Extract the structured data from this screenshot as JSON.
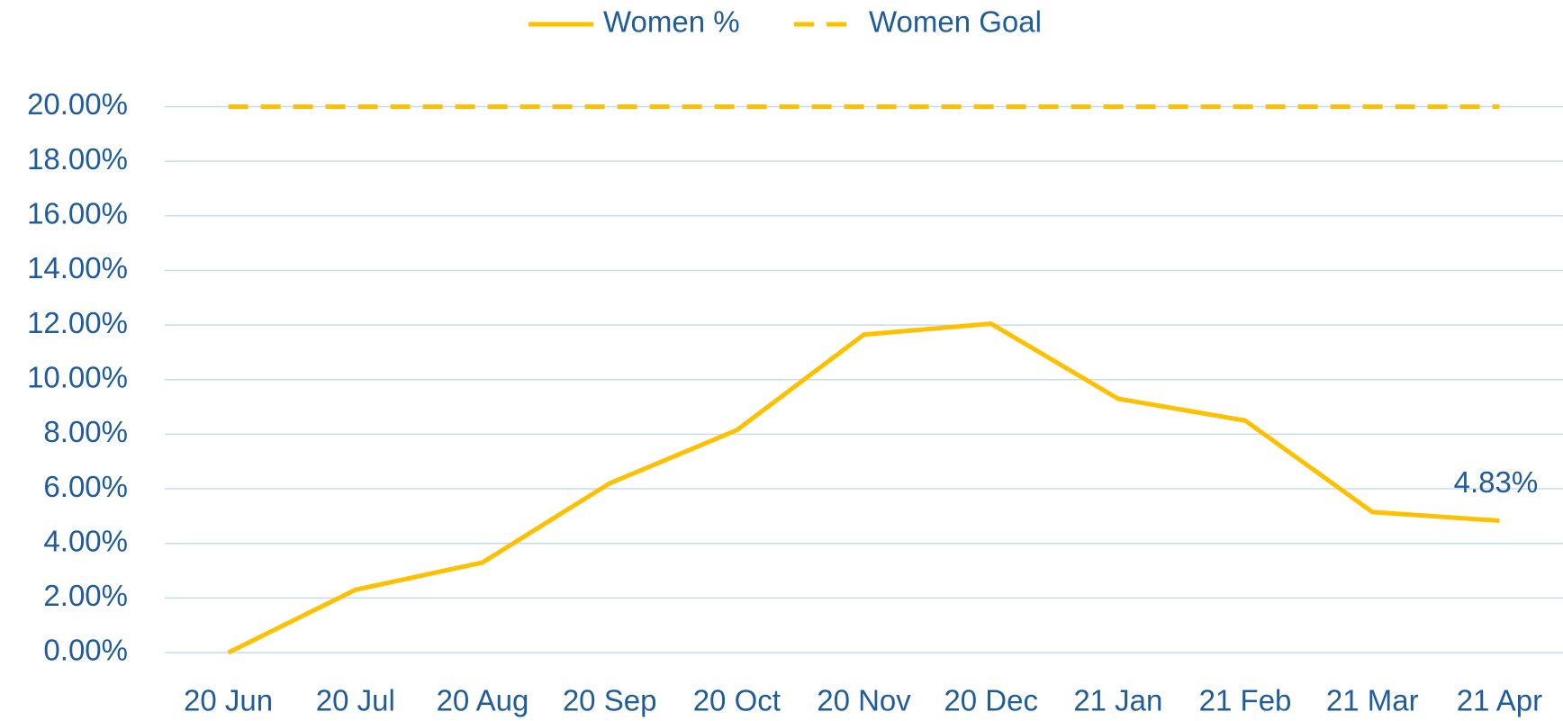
{
  "chart_data": {
    "type": "line",
    "categories": [
      "20 Jun",
      "20 Jul",
      "20 Aug",
      "20 Sep",
      "20 Oct",
      "20 Nov",
      "20 Dec",
      "21 Jan",
      "21 Feb",
      "21 Mar",
      "21 Apr"
    ],
    "series": [
      {
        "name": "Women %",
        "color": "#FFC000",
        "style": "solid",
        "values": [
          0,
          2.3,
          3.3,
          6.2,
          8.15,
          11.65,
          12.05,
          9.3,
          8.5,
          5.15,
          4.83
        ],
        "value_labels": [
          null,
          null,
          null,
          null,
          null,
          null,
          null,
          null,
          null,
          null,
          "4.83%"
        ]
      },
      {
        "name": "Women Goal",
        "color": "#FFC000",
        "style": "dashed",
        "values": [
          20,
          20,
          20,
          20,
          20,
          20,
          20,
          20,
          20,
          20,
          20
        ]
      }
    ],
    "ylim": [
      0,
      20
    ],
    "yticks": [
      {
        "value": 0,
        "label": "0.00%"
      },
      {
        "value": 2,
        "label": "2.00%"
      },
      {
        "value": 4,
        "label": "4.00%"
      },
      {
        "value": 6,
        "label": "6.00%"
      },
      {
        "value": 8,
        "label": "8.00%"
      },
      {
        "value": 10,
        "label": "10.00%"
      },
      {
        "value": 12,
        "label": "12.00%"
      },
      {
        "value": 14,
        "label": "14.00%"
      },
      {
        "value": 16,
        "label": "16.00%"
      },
      {
        "value": 18,
        "label": "18.00%"
      },
      {
        "value": 20,
        "label": "20.00%"
      }
    ],
    "grid": true,
    "legend": "top"
  }
}
